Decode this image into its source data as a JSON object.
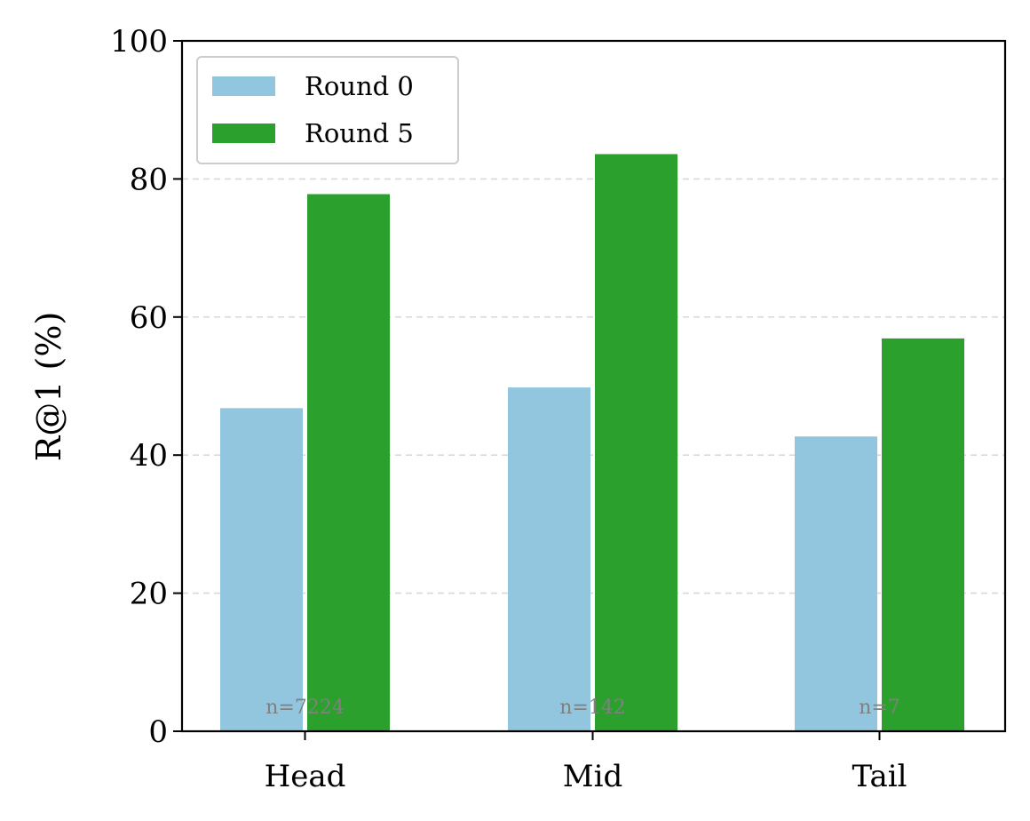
{
  "chart_data": {
    "type": "bar",
    "title": "",
    "xlabel": "",
    "ylabel": "R@1 (%)",
    "categories": [
      "Head",
      "Mid",
      "Tail"
    ],
    "series": [
      {
        "name": "Round 0",
        "values": [
          46.8,
          49.8,
          42.7
        ],
        "color": "#92c5de"
      },
      {
        "name": "Round 5",
        "values": [
          77.8,
          83.6,
          56.9
        ],
        "color": "#2ca02c"
      }
    ],
    "ylim": [
      0,
      100
    ],
    "yticks": [
      0,
      20,
      40,
      60,
      80,
      100
    ],
    "grid": "horizontal dashed",
    "legend_position": "top-left",
    "annotations": [
      "n=7224",
      "n=142",
      "n=7"
    ]
  }
}
